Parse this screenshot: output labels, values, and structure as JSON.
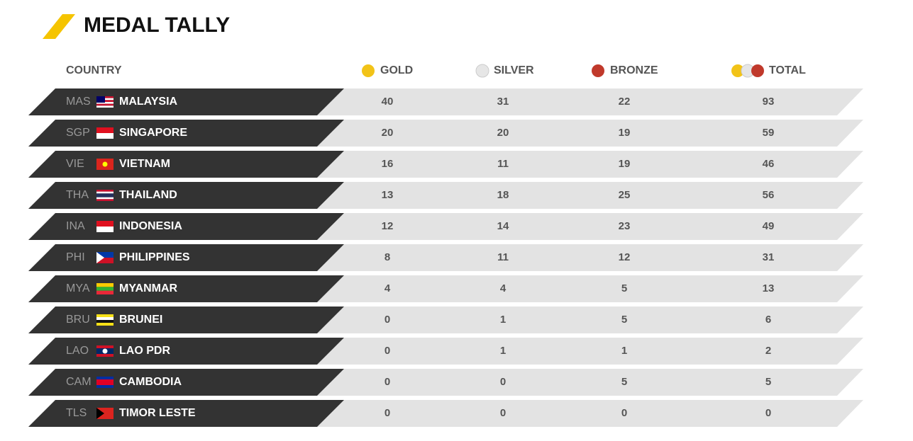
{
  "header": {
    "title": "MEDAL TALLY"
  },
  "table": {
    "columns": [
      "COUNTRY",
      "GOLD",
      "SILVER",
      "BRONZE",
      "TOTAL"
    ],
    "rows": [
      [
        "MAS",
        "MALAYSIA",
        40,
        31,
        22,
        93
      ],
      [
        "SGP",
        "SINGAPORE",
        20,
        20,
        19,
        59
      ],
      [
        "VIE",
        "VIETNAM",
        16,
        11,
        19,
        46
      ],
      [
        "THA",
        "THAILAND",
        13,
        18,
        25,
        56
      ],
      [
        "INA",
        "INDONESIA",
        12,
        14,
        23,
        49
      ],
      [
        "PHI",
        "PHILIPPINES",
        8,
        11,
        12,
        31
      ],
      [
        "MYA",
        "MYANMAR",
        4,
        4,
        5,
        13
      ],
      [
        "BRU",
        "BRUNEI",
        0,
        1,
        5,
        6
      ],
      [
        "LAO",
        "LAO PDR",
        0,
        1,
        1,
        2
      ],
      [
        "CAM",
        "CAMBODIA",
        0,
        0,
        5,
        5
      ],
      [
        "TLS",
        "TIMOR LESTE",
        0,
        0,
        0,
        0
      ]
    ]
  }
}
